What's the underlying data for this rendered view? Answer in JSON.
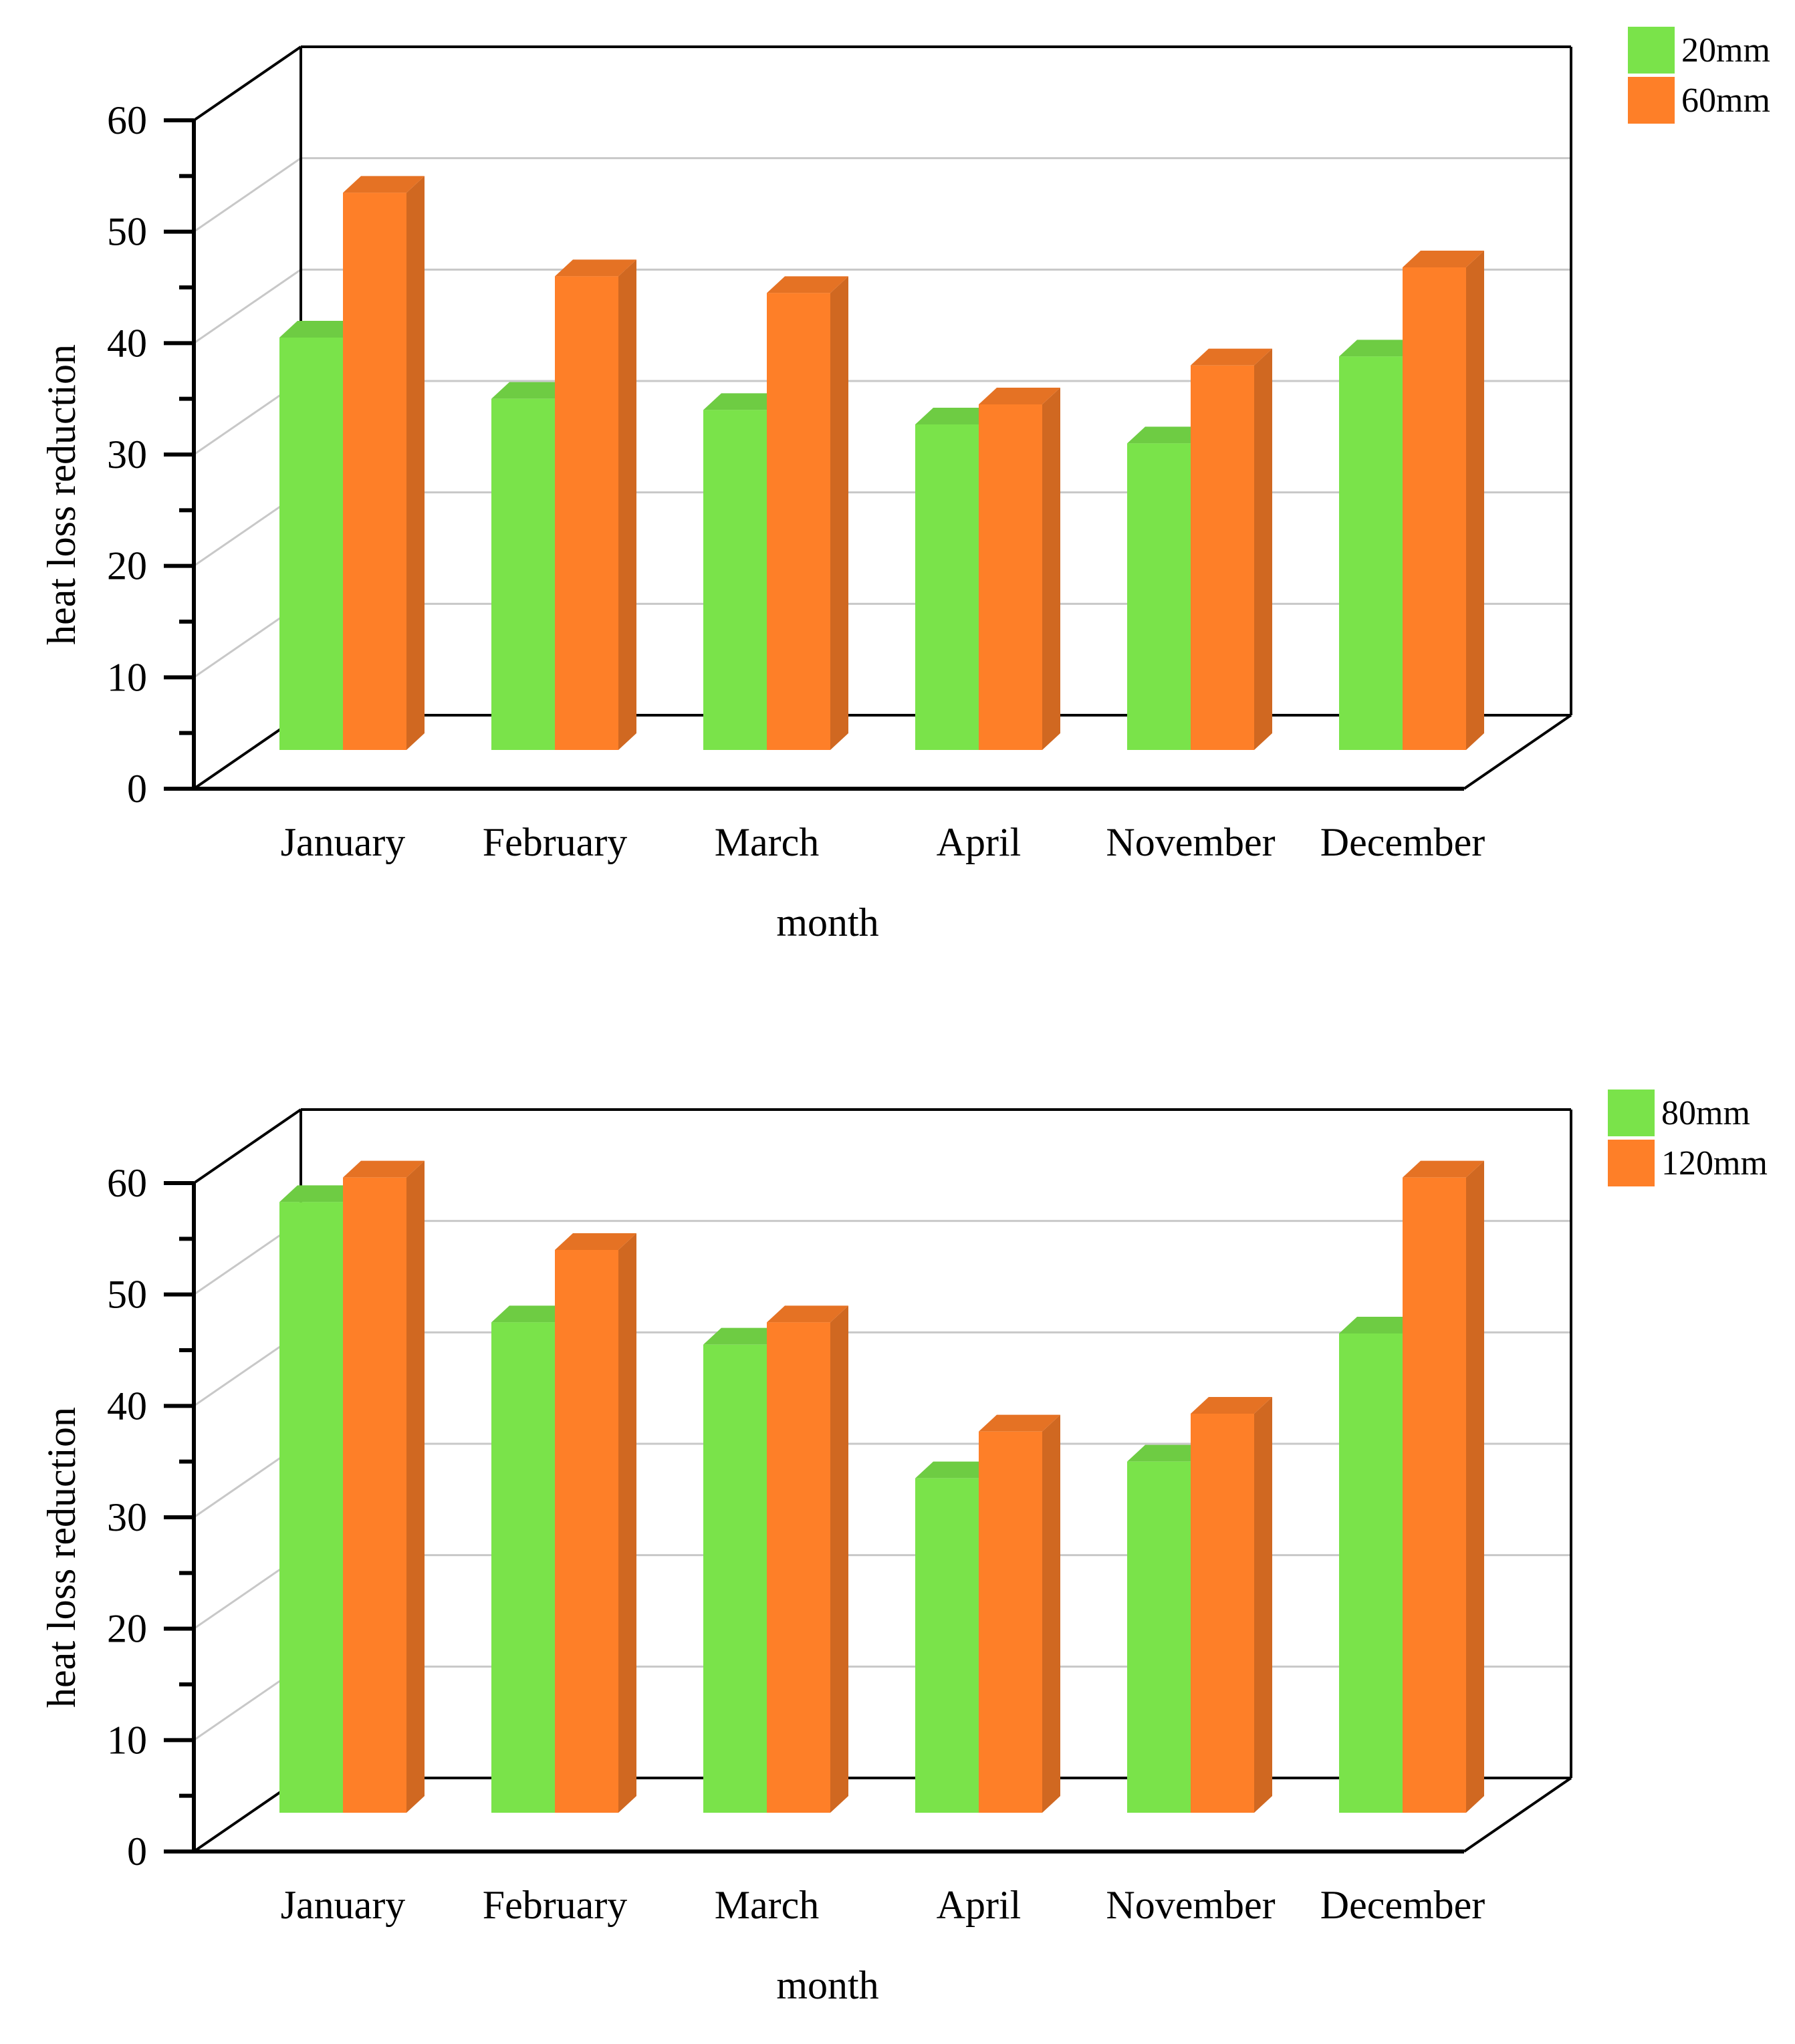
{
  "chart_data": [
    {
      "type": "bar",
      "style": "3d-clustered",
      "categories": [
        "January",
        "February",
        "March",
        "April",
        "November",
        "December"
      ],
      "series": [
        {
          "name": "20mm",
          "values": [
            40.5,
            35.0,
            34.0,
            32.7,
            31.0,
            38.8
          ]
        },
        {
          "name": "60mm",
          "values": [
            53.5,
            46.0,
            44.5,
            34.5,
            38.0,
            46.8
          ]
        }
      ],
      "colors": [
        "#7ae34a",
        "#fe7f28"
      ],
      "xlabel": "month",
      "ylabel": "heat loss reduction",
      "ylim": [
        0,
        60
      ],
      "yticks": [
        0,
        10,
        20,
        30,
        40,
        50,
        60
      ],
      "grid": true,
      "legend": "top-right"
    },
    {
      "type": "bar",
      "style": "3d-clustered",
      "categories": [
        "January",
        "February",
        "March",
        "April",
        "November",
        "December"
      ],
      "series": [
        {
          "name": "80mm",
          "values": [
            58.3,
            47.5,
            45.5,
            33.5,
            35.0,
            46.5
          ]
        },
        {
          "name": "120mm",
          "values": [
            60.5,
            54.0,
            47.5,
            37.7,
            39.3,
            60.5
          ]
        }
      ],
      "colors": [
        "#7ae34a",
        "#fe7f28"
      ],
      "xlabel": "month",
      "ylabel": "heat loss reduction",
      "ylim": [
        0,
        60
      ],
      "yticks": [
        0,
        10,
        20,
        30,
        40,
        50,
        60
      ],
      "grid": true,
      "legend": "top-right"
    }
  ]
}
